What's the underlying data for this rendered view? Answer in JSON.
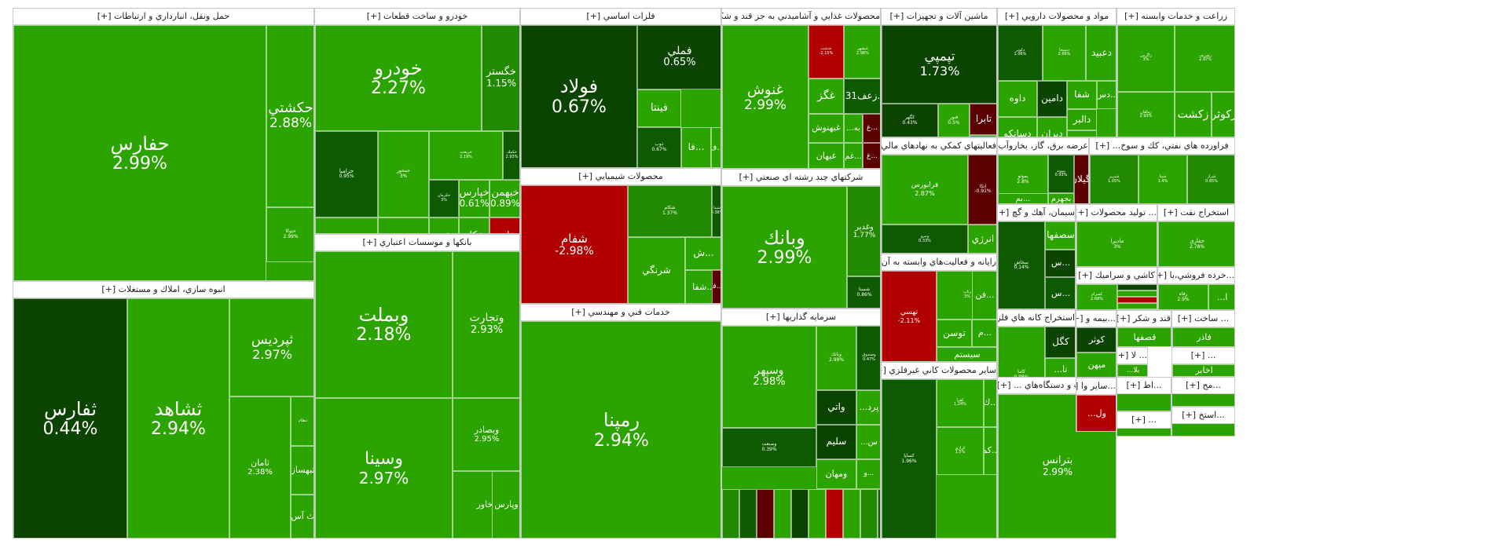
{
  "colors": {
    "bright_green": "#2ba400",
    "mid_green": "#228a00",
    "dark_green": "#0e5a00",
    "deep_green": "#0a4400",
    "red": "#b00000",
    "dark_red": "#5a0000",
    "plus": "[+]"
  },
  "sectors": [
    {
      "name": "حمل ونقل، انبارداري و ارتباطات",
      "tiles": [
        {
          "symbol": "حفارس",
          "pct": "2.99%"
        },
        {
          "symbol": "حكشتي",
          "pct": "2.88%"
        },
        {
          "symbol": "حتوكا",
          "pct": "2.99%"
        }
      ]
    },
    {
      "name": "انبوه سازي، املاك و مستغلات",
      "tiles": [
        {
          "symbol": "ثفارس",
          "pct": "0.44%"
        },
        {
          "symbol": "ثشاهد",
          "pct": "2.94%"
        },
        {
          "symbol": "ثپرديس",
          "pct": "2.97%"
        },
        {
          "symbol": "ثامان",
          "pct": "2.38%"
        },
        {
          "symbol": "ثنظام",
          "pct": ""
        },
        {
          "symbol": "ثبهساز",
          "pct": ""
        },
        {
          "symbol": "ث آس",
          "pct": ""
        }
      ]
    },
    {
      "name": "خودرو و ساخت قطعات",
      "tiles": [
        {
          "symbol": "خودرو",
          "pct": "2.27%"
        },
        {
          "symbol": "خگستر",
          "pct": "1.15%"
        },
        {
          "symbol": "خزاميا",
          "pct": "0.95%"
        },
        {
          "symbol": "خمحور",
          "pct": "3%"
        },
        {
          "symbol": "خريخت",
          "pct": "2.19%"
        },
        {
          "symbol": "خكمك",
          "pct": "2.93%"
        },
        {
          "symbol": "خكرمان",
          "pct": "3%"
        },
        {
          "symbol": "خپارس",
          "pct": "0.61%"
        },
        {
          "symbol": "خبهمن",
          "pct": "0.89%"
        },
        {
          "symbol": "خكار",
          "pct": ""
        },
        {
          "symbol": "خاهن",
          "pct": ""
        },
        {
          "symbol": "خبهمن",
          "pct": ""
        },
        {
          "symbol": "فنر",
          "pct": ""
        },
        {
          "symbol": "...خم",
          "pct": ""
        },
        {
          "symbol": "ختوقا",
          "pct": ""
        },
        {
          "symbol": "ختراك",
          "pct": ""
        },
        {
          "symbol": "خ...",
          "pct": ""
        },
        {
          "symbol": "خ...",
          "pct": ""
        }
      ]
    },
    {
      "name": "بانكها و موسسات اعتباري",
      "tiles": [
        {
          "symbol": "وبملت",
          "pct": "2.18%"
        },
        {
          "symbol": "وتجارت",
          "pct": "2.93%"
        },
        {
          "symbol": "وسينا",
          "pct": "2.97%"
        },
        {
          "symbol": "وبصادر",
          "pct": "2.95%"
        },
        {
          "symbol": "وخاور",
          "pct": ""
        },
        {
          "symbol": "وپست",
          "pct": "2.84%"
        },
        {
          "symbol": "وپارس",
          "pct": ""
        }
      ]
    },
    {
      "name": "فلزات اساسي",
      "tiles": [
        {
          "symbol": "فولاد",
          "pct": "0.67%"
        },
        {
          "symbol": "فملي",
          "pct": "0.65%"
        },
        {
          "symbol": "فخوز",
          "pct": ""
        },
        {
          "symbol": "فينتا",
          "pct": ""
        },
        {
          "symbol": "ذوب",
          "pct": "0.67%"
        },
        {
          "symbol": "فا...",
          "pct": ""
        },
        {
          "symbol": "ف...",
          "pct": ""
        },
        {
          "symbol": "فولاي",
          "pct": ""
        }
      ]
    },
    {
      "name": "محصولات شيميايي",
      "tiles": [
        {
          "symbol": "شفام",
          "pct": "-2.98%"
        },
        {
          "symbol": "شكام",
          "pct": "1.37%"
        },
        {
          "symbol": "شپنا",
          "pct": "0.38%"
        },
        {
          "symbol": "شرنگي",
          "pct": ""
        },
        {
          "symbol": "ش...",
          "pct": ""
        },
        {
          "symbol": "تا...",
          "pct": ""
        },
        {
          "symbol": "زاگرس",
          "pct": "2.96%"
        },
        {
          "symbol": "بوعلي",
          "pct": ""
        },
        {
          "symbol": "شفا...",
          "pct": ""
        },
        {
          "symbol": "فا...",
          "pct": ""
        }
      ]
    },
    {
      "name": "خدمات فني و مهندسي",
      "tiles": [
        {
          "symbol": "رمپنا",
          "pct": "2.94%"
        }
      ]
    },
    {
      "name": "محصولات غذايي و آشاميدني به جز قند و شكر",
      "tiles": [
        {
          "symbol": "غنوش",
          "pct": "2.99%"
        },
        {
          "symbol": "غدشت",
          "pct": "-2.15%"
        },
        {
          "symbol": "غبشهر",
          "pct": "2.96%"
        },
        {
          "symbol": "غگز",
          "pct": ""
        },
        {
          "symbol": "زعف031...",
          "pct": ""
        },
        {
          "symbol": "غبهنوش",
          "pct": ""
        },
        {
          "symbol": "...به",
          "pct": ""
        },
        {
          "symbol": "غ...",
          "pct": ""
        },
        {
          "symbol": "غ...",
          "pct": ""
        },
        {
          "symbol": "غيهان",
          "pct": ""
        },
        {
          "symbol": "غم...",
          "pct": ""
        },
        {
          "symbol": "غپینو",
          "pct": "2.99%"
        },
        {
          "symbol": "غدا...",
          "pct": ""
        },
        {
          "symbol": "غفارس",
          "pct": ""
        }
      ]
    },
    {
      "name": "شركتهاي چند رشته اي صنعتي",
      "tiles": [
        {
          "symbol": "وبانك",
          "pct": "2.99%"
        },
        {
          "symbol": "وغدير",
          "pct": "1.77%"
        },
        {
          "symbol": "شستا",
          "pct": "0.86%"
        }
      ]
    },
    {
      "name": "سرمايه گذاريها",
      "tiles": [
        {
          "symbol": "وسپهر",
          "pct": "2.98%"
        },
        {
          "symbol": "وبانك",
          "pct": "2.99%"
        },
        {
          "symbol": "وصندوق",
          "pct": "0.47%"
        },
        {
          "symbol": "...پرد",
          "pct": ""
        },
        {
          "symbol": "واتي",
          "pct": ""
        },
        {
          "symbol": "سليم",
          "pct": ""
        },
        {
          "symbol": "وصنعت",
          "pct": "0.39%"
        },
        {
          "symbol": "ومهان",
          "pct": ""
        },
        {
          "symbol": "...س",
          "pct": ""
        },
        {
          "symbol": "و...",
          "pct": ""
        }
      ]
    },
    {
      "name": "ماشين آلات و تجهيزات",
      "tiles": [
        {
          "symbol": "تپمپي",
          "pct": "1.73%"
        },
        {
          "symbol": "كگهر",
          "pct": "0.43%"
        },
        {
          "symbol": "فنور",
          "pct": "0.5%"
        },
        {
          "symbol": "تابرا",
          "pct": ""
        },
        {
          "symbol": "وتوشه",
          "pct": ""
        },
        {
          "symbol": "لخزر",
          "pct": ""
        }
      ]
    },
    {
      "name": "فعاليتهاي كمكي به نهادهاي مالي ...",
      "tiles": [
        {
          "symbol": "فرابورس",
          "pct": "2.87%"
        },
        {
          "symbol": "اتكا",
          "pct": "-0.91%"
        },
        {
          "symbol": "ونيرو",
          "pct": "0.33%"
        },
        {
          "symbol": "انرژي",
          "pct": ""
        }
      ]
    },
    {
      "name": "رايانه و فعاليت‌هاي وابسته به آن",
      "tiles": [
        {
          "symbol": "تهسي",
          "pct": "-2.11%"
        },
        {
          "symbol": "رتاپ",
          "pct": "3%"
        },
        {
          "symbol": "فن...",
          "pct": ""
        },
        {
          "symbol": "توسن",
          "pct": ""
        },
        {
          "symbol": "م...",
          "pct": ""
        },
        {
          "symbol": "سيستم",
          "pct": ""
        }
      ]
    },
    {
      "name": "ساير محصولات كاني غيرفلزي",
      "tiles": [
        {
          "symbol": "كساپا",
          "pct": "1.96%"
        },
        {
          "symbol": "كفرا",
          "pct": "1.24%"
        },
        {
          "symbol": "ك...",
          "pct": ""
        },
        {
          "symbol": "كم...",
          "pct": ""
        },
        {
          "symbol": "كرازي",
          "pct": "1.5%"
        }
      ]
    },
    {
      "name": "مواد و محصولات دارويي",
      "tiles": [
        {
          "symbol": "دكوثر",
          "pct": "1.06%"
        },
        {
          "symbol": "دسبحا",
          "pct": "2.66%"
        },
        {
          "symbol": "دعبيد",
          "pct": ""
        },
        {
          "symbol": "داوه",
          "pct": ""
        },
        {
          "symbol": "دامين",
          "pct": ""
        },
        {
          "symbol": "شفا",
          "pct": ""
        },
        {
          "symbol": "دس...",
          "pct": ""
        },
        {
          "symbol": "دسانكو",
          "pct": ""
        },
        {
          "symbol": "ديران",
          "pct": ""
        },
        {
          "symbol": "دالبر",
          "pct": ""
        },
        {
          "symbol": "...بر",
          "pct": ""
        }
      ]
    },
    {
      "name": "زراعت و خدمات وابسته",
      "tiles": [
        {
          "symbol": "زاگرس",
          "pct": "3%"
        },
        {
          "symbol": "زشريف",
          "pct": "2.97%"
        },
        {
          "symbol": "زماهان",
          "pct": "2.93%"
        },
        {
          "symbol": "زكشت",
          "pct": ""
        },
        {
          "symbol": "زكوثر",
          "pct": ""
        },
        {
          "symbol": "زفكا",
          "pct": ""
        }
      ]
    },
    {
      "name": "عرضه برق، گاز، بخاروآب گرم",
      "tiles": [
        {
          "symbol": "بموتو",
          "pct": "2.8%"
        },
        {
          "symbol": "بپيوند",
          "pct": "0.93%"
        },
        {
          "symbol": "بگيلان",
          "pct": ""
        },
        {
          "symbol": "بجهرم",
          "pct": ""
        },
        {
          "symbol": "بم...",
          "pct": ""
        }
      ]
    },
    {
      "name": "فراورده هاي نفتي، كك و سوخ...",
      "tiles": [
        {
          "symbol": "شبريز",
          "pct": "1.05%"
        },
        {
          "symbol": "شپنا",
          "pct": "1.4%"
        },
        {
          "symbol": "شراز",
          "pct": "0.85%"
        }
      ]
    },
    {
      "name": "سيمان، آهك و گچ",
      "tiles": [
        {
          "symbol": "سخاش",
          "pct": "0.14%"
        },
        {
          "symbol": "سصفها",
          "pct": ""
        },
        {
          "symbol": "س...",
          "pct": ""
        },
        {
          "symbol": "س...",
          "pct": ""
        }
      ]
    },
    {
      "name": "... توليد محصولات",
      "tiles": [
        {
          "symbol": "ماديرا",
          "pct": "3%"
        }
      ]
    },
    {
      "name": "استخراج نفت",
      "tiles": [
        {
          "symbol": "حفاري",
          "pct": "2.78%"
        }
      ]
    },
    {
      "name": "كاشي و سراميك",
      "tiles": [
        {
          "symbol": "كسرام",
          "pct": "2.68%"
        }
      ]
    },
    {
      "name": "...خرده فروشي،با",
      "tiles": [
        {
          "symbol": "رفاه",
          "pct": "2.9%"
        },
        {
          "symbol": "...ا",
          "pct": ""
        }
      ]
    },
    {
      "name": "استخراج كانه هاي فلزي",
      "tiles": [
        {
          "symbol": "كاما",
          "pct": "0.98%"
        },
        {
          "symbol": "كگل",
          "pct": ""
        },
        {
          "symbol": "...تا",
          "pct": ""
        },
        {
          "symbol": "كچاد",
          "pct": ""
        }
      ]
    },
    {
      "name": "قند و شكر",
      "tiles": [
        {
          "symbol": "قصفها",
          "pct": ""
        }
      ]
    },
    {
      "name": "... ساخت",
      "tiles": [
        {
          "symbol": "فاذر",
          "pct": ""
        }
      ]
    },
    {
      "name": "...بيمه و",
      "tiles": [
        {
          "symbol": "كوثر",
          "pct": ""
        },
        {
          "symbol": "ميهن",
          "pct": ""
        }
      ]
    },
    {
      "name": "... لا",
      "tiles": [
        {
          "symbol": "...بلا",
          "pct": ""
        }
      ]
    },
    {
      "name": "...",
      "tiles": [
        {
          "symbol": "اخابر",
          "pct": ""
        }
      ]
    },
    {
      "name": "ماشين آلات و دستگاه‌هاي ...",
      "tiles": [
        {
          "symbol": "بترانس",
          "pct": "2.99%"
        }
      ]
    },
    {
      "name": "...ساير وا",
      "tiles": [
        {
          "symbol": "...ول",
          "pct": ""
        }
      ]
    },
    {
      "name": "...مح",
      "tiles": []
    },
    {
      "name": "...اط",
      "tiles": []
    },
    {
      "name": "...استخ",
      "tiles": []
    },
    {
      "name": "...",
      "tiles": []
    }
  ]
}
